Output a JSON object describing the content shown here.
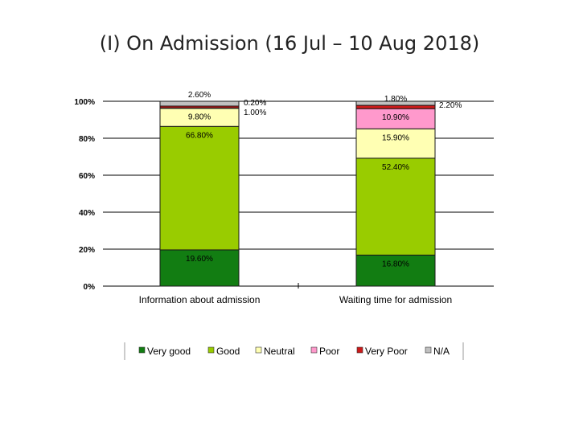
{
  "slide": {
    "title": "(I) On Admission (16 Jul – 10 Aug 2018)"
  },
  "chart_data": {
    "type": "bar",
    "stacked": true,
    "percent_stacked": true,
    "categories": [
      "Information about admission",
      "Waiting time for admission"
    ],
    "series": [
      {
        "name": "Very good",
        "color": "#127d12",
        "values": [
          19.6,
          16.8
        ],
        "labels": [
          "19.60%",
          "16.80%"
        ]
      },
      {
        "name": "Good",
        "color": "#99cc00",
        "values": [
          66.8,
          52.4
        ],
        "labels": [
          "66.80%",
          "52.40%"
        ]
      },
      {
        "name": "Neutral",
        "color": "#ffffb3",
        "values": [
          9.8,
          15.9
        ],
        "labels": [
          "9.80%",
          "15.90%"
        ]
      },
      {
        "name": "Poor",
        "color": "#ff99cc",
        "values": [
          0.2,
          10.9
        ],
        "labels": [
          "0.20%",
          "10.90%"
        ]
      },
      {
        "name": "Very Poor",
        "color": "#cc1a1a",
        "values": [
          1.0,
          1.8
        ],
        "labels": [
          "1.00%",
          "1.80%"
        ]
      },
      {
        "name": "N/A",
        "color": "#c0c0c0",
        "values": [
          2.6,
          2.2
        ],
        "labels": [
          "2.60%",
          "2.20%"
        ]
      }
    ],
    "y_ticks": [
      "0%",
      "20%",
      "40%",
      "60%",
      "80%",
      "100%"
    ],
    "ylim": [
      0,
      100
    ],
    "grid": true,
    "legend_position": "bottom"
  }
}
